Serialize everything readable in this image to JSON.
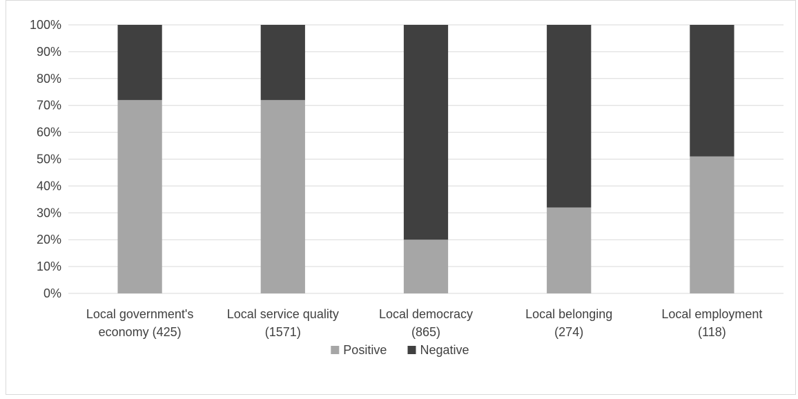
{
  "chart_data": {
    "type": "bar",
    "stacked": true,
    "percent_stacked": true,
    "categories": [
      [
        "Local government's",
        "economy (425)"
      ],
      [
        "Local service quality",
        "(1571)"
      ],
      [
        "Local democracy",
        "(865)"
      ],
      [
        "Local belonging",
        "(274)"
      ],
      [
        "Local employment",
        "(118)"
      ]
    ],
    "series": [
      {
        "name": "Positive",
        "color": "#a6a6a6",
        "values": [
          72,
          72,
          20,
          32,
          51
        ]
      },
      {
        "name": "Negative",
        "color": "#404040",
        "values": [
          28,
          28,
          80,
          68,
          49
        ]
      }
    ],
    "yticks": [
      "0%",
      "10%",
      "20%",
      "30%",
      "40%",
      "50%",
      "60%",
      "70%",
      "80%",
      "90%",
      "100%"
    ],
    "ylim": [
      0,
      100
    ],
    "grid": true,
    "legend": "bottom-center"
  }
}
